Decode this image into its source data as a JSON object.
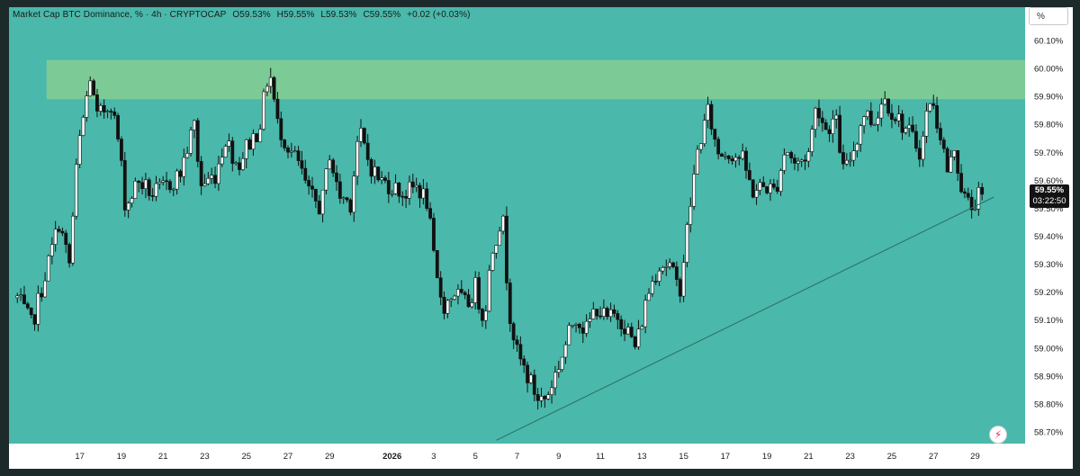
{
  "legend": {
    "symbol": "Market Cap BTC Dominance, % · 4h · CRYPTOCAP",
    "open": "O59.53%",
    "high": "H59.55%",
    "low": "L59.53%",
    "close": "C59.55%",
    "change": "+0.02 (+0.03%)"
  },
  "scale_button": "%",
  "price_badge": {
    "price": "59.55%",
    "countdown": "03:22:50"
  },
  "colors": {
    "background": "#4ab8aa",
    "zone": "#7ccb96",
    "candle_up": "#ffffff",
    "candle_down": "#111111",
    "trendline": "#2c6f63",
    "axis_text": "#1b1b1b"
  },
  "icons": {
    "bolt": "lightning-bolt-icon"
  },
  "chart_data": {
    "type": "candlestick",
    "y_unit": "%",
    "ylim": [
      58.65,
      60.15
    ],
    "y_ticks": [
      "60.10%",
      "60.00%",
      "59.90%",
      "59.80%",
      "59.70%",
      "59.60%",
      "59.50%",
      "59.40%",
      "59.30%",
      "59.20%",
      "59.10%",
      "59.00%",
      "58.90%",
      "58.80%",
      "58.70%"
    ],
    "x_ticks": [
      "17",
      "19",
      "21",
      "23",
      "25",
      "27",
      "29",
      "2026",
      "3",
      "5",
      "7",
      "9",
      "11",
      "13",
      "15",
      "17",
      "19",
      "21",
      "23",
      "25",
      "27",
      "29"
    ],
    "x_tick_days": [
      -15,
      -13,
      -11,
      -9,
      -7,
      -5,
      -3,
      0,
      2,
      4,
      6,
      8,
      10,
      12,
      14,
      16,
      18,
      20,
      22,
      24,
      26,
      28
    ],
    "anchors": [
      {
        "day": -18.0,
        "v": 59.18
      },
      {
        "day": -17.3,
        "v": 59.08
      },
      {
        "day": -16.6,
        "v": 59.28
      },
      {
        "day": -16.0,
        "v": 59.45
      },
      {
        "day": -15.5,
        "v": 59.3
      },
      {
        "day": -15.1,
        "v": 59.7
      },
      {
        "day": -14.5,
        "v": 59.97
      },
      {
        "day": -14.2,
        "v": 59.82
      },
      {
        "day": -13.5,
        "v": 59.88
      },
      {
        "day": -13.1,
        "v": 59.72
      },
      {
        "day": -12.8,
        "v": 59.5
      },
      {
        "day": -12.2,
        "v": 59.6
      },
      {
        "day": -11.5,
        "v": 59.55
      },
      {
        "day": -10.8,
        "v": 59.58
      },
      {
        "day": -10.2,
        "v": 59.62
      },
      {
        "day": -9.5,
        "v": 59.8
      },
      {
        "day": -9.2,
        "v": 59.58
      },
      {
        "day": -8.5,
        "v": 59.62
      },
      {
        "day": -8.0,
        "v": 59.75
      },
      {
        "day": -7.4,
        "v": 59.65
      },
      {
        "day": -7.0,
        "v": 59.72
      },
      {
        "day": -6.4,
        "v": 59.78
      },
      {
        "day": -5.9,
        "v": 60.0
      },
      {
        "day": -5.5,
        "v": 59.8
      },
      {
        "day": -5.0,
        "v": 59.72
      },
      {
        "day": -4.5,
        "v": 59.66
      },
      {
        "day": -4.0,
        "v": 59.55
      },
      {
        "day": -3.4,
        "v": 59.5
      },
      {
        "day": -3.0,
        "v": 59.7
      },
      {
        "day": -2.6,
        "v": 59.55
      },
      {
        "day": -2.0,
        "v": 59.52
      },
      {
        "day": -1.6,
        "v": 59.78
      },
      {
        "day": -1.1,
        "v": 59.66
      },
      {
        "day": -0.6,
        "v": 59.6
      },
      {
        "day": 0.0,
        "v": 59.58
      },
      {
        "day": 0.6,
        "v": 59.55
      },
      {
        "day": 1.2,
        "v": 59.58
      },
      {
        "day": 1.7,
        "v": 59.52
      },
      {
        "day": 2.1,
        "v": 59.25
      },
      {
        "day": 2.5,
        "v": 59.15
      },
      {
        "day": 3.0,
        "v": 59.2
      },
      {
        "day": 3.6,
        "v": 59.15
      },
      {
        "day": 4.0,
        "v": 59.22
      },
      {
        "day": 4.4,
        "v": 59.1
      },
      {
        "day": 4.8,
        "v": 59.35
      },
      {
        "day": 5.3,
        "v": 59.48
      },
      {
        "day": 5.6,
        "v": 59.15
      },
      {
        "day": 6.0,
        "v": 58.98
      },
      {
        "day": 6.5,
        "v": 58.9
      },
      {
        "day": 7.0,
        "v": 58.82
      },
      {
        "day": 7.4,
        "v": 58.82
      },
      {
        "day": 7.8,
        "v": 58.9
      },
      {
        "day": 8.2,
        "v": 58.98
      },
      {
        "day": 8.8,
        "v": 59.12
      },
      {
        "day": 9.3,
        "v": 59.06
      },
      {
        "day": 9.8,
        "v": 59.15
      },
      {
        "day": 10.3,
        "v": 59.1
      },
      {
        "day": 10.8,
        "v": 59.12
      },
      {
        "day": 11.2,
        "v": 59.08
      },
      {
        "day": 11.7,
        "v": 59.0
      },
      {
        "day": 12.3,
        "v": 59.2
      },
      {
        "day": 12.8,
        "v": 59.3
      },
      {
        "day": 13.3,
        "v": 59.3
      },
      {
        "day": 13.8,
        "v": 59.2
      },
      {
        "day": 14.3,
        "v": 59.5
      },
      {
        "day": 14.7,
        "v": 59.72
      },
      {
        "day": 15.2,
        "v": 59.85
      },
      {
        "day": 15.6,
        "v": 59.7
      },
      {
        "day": 16.2,
        "v": 59.7
      },
      {
        "day": 16.8,
        "v": 59.68
      },
      {
        "day": 17.3,
        "v": 59.56
      },
      {
        "day": 17.9,
        "v": 59.58
      },
      {
        "day": 18.4,
        "v": 59.56
      },
      {
        "day": 18.9,
        "v": 59.72
      },
      {
        "day": 19.4,
        "v": 59.65
      },
      {
        "day": 20.0,
        "v": 59.7
      },
      {
        "day": 20.4,
        "v": 59.88
      },
      {
        "day": 20.8,
        "v": 59.78
      },
      {
        "day": 21.3,
        "v": 59.82
      },
      {
        "day": 21.7,
        "v": 59.62
      },
      {
        "day": 22.2,
        "v": 59.72
      },
      {
        "day": 22.7,
        "v": 59.85
      },
      {
        "day": 23.1,
        "v": 59.8
      },
      {
        "day": 23.6,
        "v": 59.9
      },
      {
        "day": 24.0,
        "v": 59.85
      },
      {
        "day": 24.5,
        "v": 59.8
      },
      {
        "day": 25.0,
        "v": 59.75
      },
      {
        "day": 25.4,
        "v": 59.7
      },
      {
        "day": 25.8,
        "v": 59.9
      },
      {
        "day": 26.3,
        "v": 59.78
      },
      {
        "day": 26.7,
        "v": 59.62
      },
      {
        "day": 27.0,
        "v": 59.72
      },
      {
        "day": 27.4,
        "v": 59.55
      },
      {
        "day": 27.8,
        "v": 59.5
      },
      {
        "day": 28.1,
        "v": 59.54
      },
      {
        "day": 28.4,
        "v": 59.55
      }
    ],
    "resistance_zone": {
      "from": 59.89,
      "to": 60.03,
      "start_day": -16.6
    },
    "trendline": {
      "start": {
        "day": 5.0,
        "v": 58.67
      },
      "end": {
        "day": 28.9,
        "v": 59.54
      }
    },
    "last_price": 59.55,
    "grid": false,
    "legend": "top-left"
  }
}
